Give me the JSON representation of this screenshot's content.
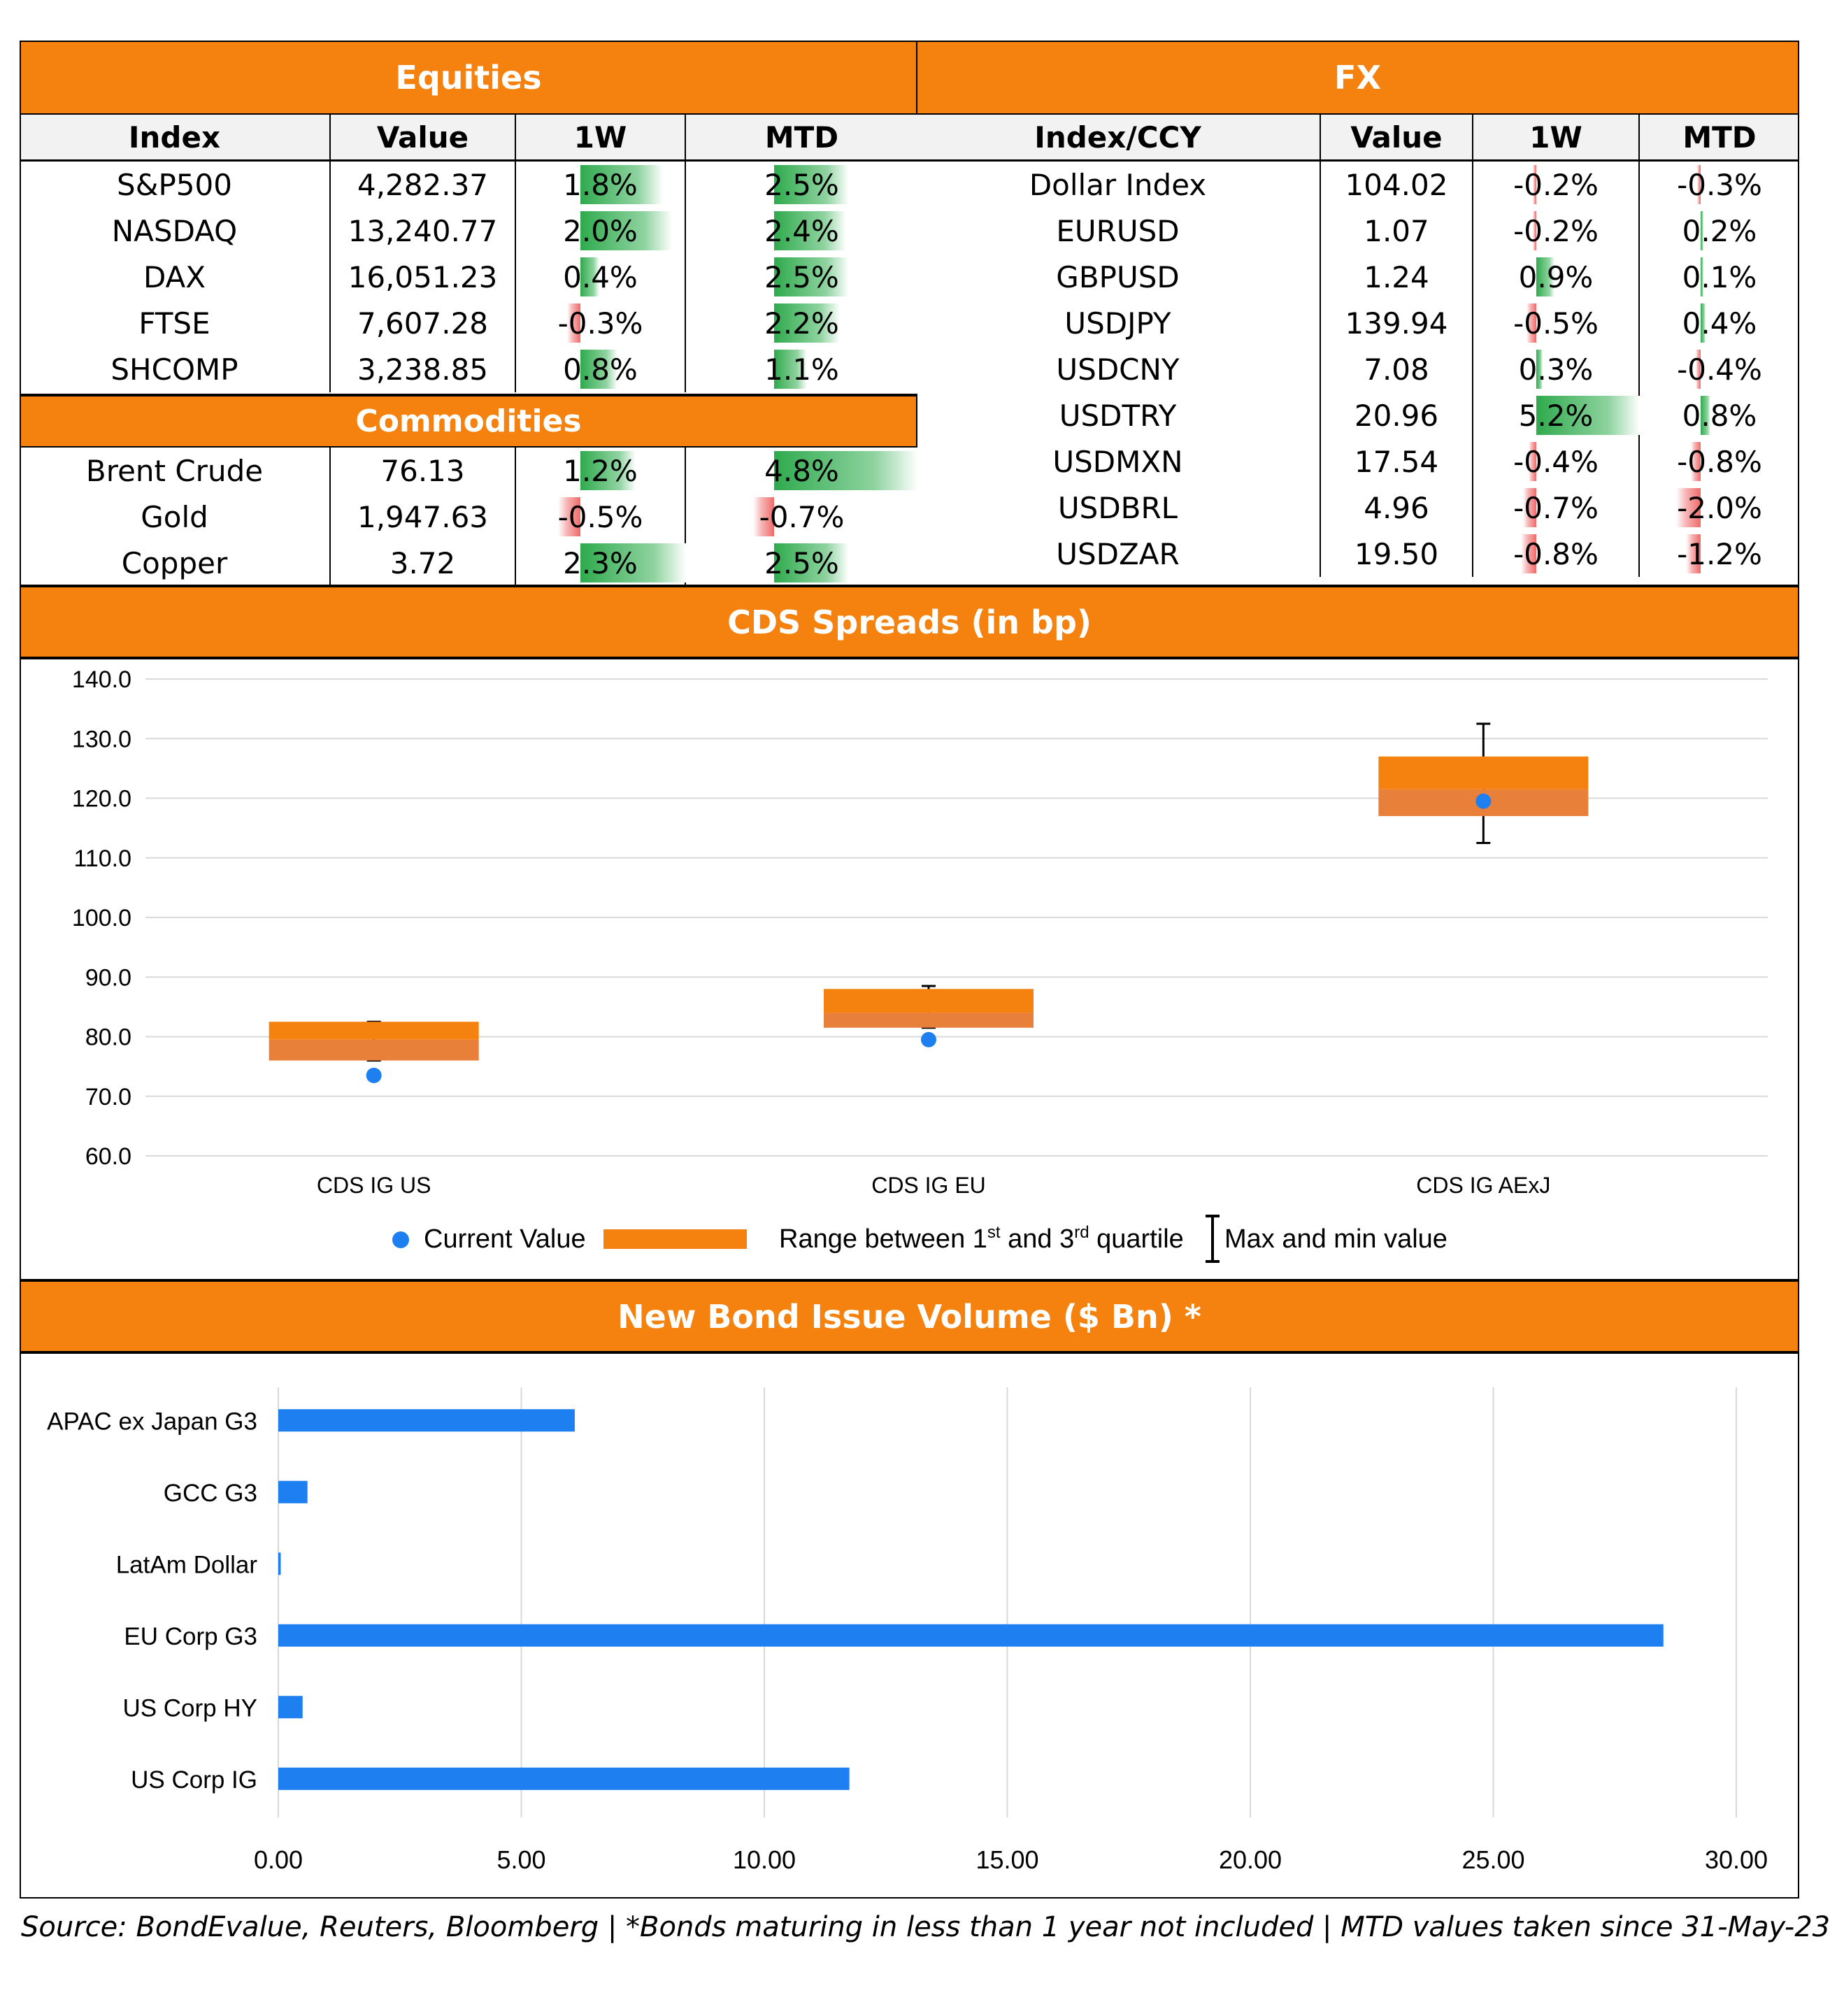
{
  "equities": {
    "title": "Equities",
    "columns": [
      "Index",
      "Value",
      "1W",
      "MTD"
    ],
    "rows": [
      {
        "name": "S&P500",
        "value": "4,282.37",
        "w1": "1.8%",
        "mtd": "2.5%",
        "w1_num": 1.8,
        "mtd_num": 2.5
      },
      {
        "name": "NASDAQ",
        "value": "13,240.77",
        "w1": "2.0%",
        "mtd": "2.4%",
        "w1_num": 2.0,
        "mtd_num": 2.4
      },
      {
        "name": "DAX",
        "value": "16,051.23",
        "w1": "0.4%",
        "mtd": "2.5%",
        "w1_num": 0.4,
        "mtd_num": 2.5
      },
      {
        "name": "FTSE",
        "value": "7,607.28",
        "w1": "-0.3%",
        "mtd": "2.2%",
        "w1_num": -0.3,
        "mtd_num": 2.2
      },
      {
        "name": "SHCOMP",
        "value": "3,238.85",
        "w1": "0.8%",
        "mtd": "1.1%",
        "w1_num": 0.8,
        "mtd_num": 1.1
      }
    ]
  },
  "commodities": {
    "title": "Commodities",
    "rows": [
      {
        "name": "Brent Crude",
        "value": "76.13",
        "w1": "1.2%",
        "mtd": "4.8%",
        "w1_num": 1.2,
        "mtd_num": 4.8
      },
      {
        "name": "Gold",
        "value": "1,947.63",
        "w1": "-0.5%",
        "mtd": "-0.7%",
        "w1_num": -0.5,
        "mtd_num": -0.7
      },
      {
        "name": "Copper",
        "value": "3.72",
        "w1": "2.3%",
        "mtd": "2.5%",
        "w1_num": 2.3,
        "mtd_num": 2.5
      }
    ]
  },
  "fx": {
    "title": "FX",
    "columns": [
      "Index/CCY",
      "Value",
      "1W",
      "MTD"
    ],
    "rows": [
      {
        "name": "Dollar Index",
        "value": "104.02",
        "w1": "-0.2%",
        "mtd": "-0.3%",
        "w1_num": -0.2,
        "mtd_num": -0.3
      },
      {
        "name": "EURUSD",
        "value": "1.07",
        "w1": "-0.2%",
        "mtd": "0.2%",
        "w1_num": -0.2,
        "mtd_num": 0.2
      },
      {
        "name": "GBPUSD",
        "value": "1.24",
        "w1": "0.9%",
        "mtd": "0.1%",
        "w1_num": 0.9,
        "mtd_num": 0.1
      },
      {
        "name": "USDJPY",
        "value": "139.94",
        "w1": "-0.5%",
        "mtd": "0.4%",
        "w1_num": -0.5,
        "mtd_num": 0.4
      },
      {
        "name": "USDCNY",
        "value": "7.08",
        "w1": "0.3%",
        "mtd": "-0.4%",
        "w1_num": 0.3,
        "mtd_num": -0.4
      },
      {
        "name": "USDTRY",
        "value": "20.96",
        "w1": "5.2%",
        "mtd": "0.8%",
        "w1_num": 5.2,
        "mtd_num": 0.8
      },
      {
        "name": "USDMXN",
        "value": "17.54",
        "w1": "-0.4%",
        "mtd": "-0.8%",
        "w1_num": -0.4,
        "mtd_num": -0.8
      },
      {
        "name": "USDBRL",
        "value": "4.96",
        "w1": "-0.7%",
        "mtd": "-2.0%",
        "w1_num": -0.7,
        "mtd_num": -2.0
      },
      {
        "name": "USDZAR",
        "value": "19.50",
        "w1": "-0.8%",
        "mtd": "-1.2%",
        "w1_num": -0.8,
        "mtd_num": -1.2
      }
    ]
  },
  "cds": {
    "title": "CDS Spreads (in bp)",
    "legend": {
      "current": "Current Value",
      "range_pre": "Range between 1",
      "range_sup1": "st",
      "range_mid": " and 3",
      "range_sup2": "rd",
      "range_post": " quartile",
      "maxmin": "Max and min value"
    }
  },
  "bonds": {
    "title": "New Bond Issue Volume ($ Bn) *"
  },
  "footer": "Source: BondEvalue, Reuters, Bloomberg | *Bonds maturing in less than 1 year not included | MTD values taken since 31-May-23",
  "colors": {
    "orange": "#f5820e",
    "blue": "#1e7ff0",
    "box": "#f5820e",
    "box_lower": "#e8803a",
    "grid": "#d9d9d9"
  },
  "chart_data": [
    {
      "type": "box",
      "title": "CDS Spreads (in bp)",
      "categories": [
        "CDS IG US",
        "CDS IG EU",
        "CDS IG AExJ"
      ],
      "ylim": [
        60,
        140
      ],
      "yticks": [
        "60.0",
        "70.0",
        "80.0",
        "90.0",
        "100.0",
        "110.0",
        "120.0",
        "130.0",
        "140.0"
      ],
      "q1": [
        76,
        81.5,
        117
      ],
      "median": [
        79.5,
        84,
        121.5
      ],
      "q3": [
        82.5,
        88,
        127
      ],
      "min": [
        76,
        81.5,
        112.5
      ],
      "max": [
        82.5,
        88.5,
        132.5
      ],
      "current": [
        73.5,
        79.5,
        119.5
      ],
      "series": [
        {
          "name": "Current Value"
        },
        {
          "name": "Range between 1st and 3rd quartile"
        },
        {
          "name": "Max and min value"
        }
      ]
    },
    {
      "type": "bar",
      "orientation": "horizontal",
      "title": "New Bond Issue Volume ($ Bn) *",
      "categories": [
        "APAC ex Japan G3",
        "GCC G3",
        "LatAm Dollar",
        "EU Corp G3",
        "US Corp HY",
        "US Corp IG"
      ],
      "values": [
        6.1,
        0.6,
        0.05,
        28.5,
        0.5,
        11.75
      ],
      "xlim": [
        0,
        30
      ],
      "xticks": [
        "0.00",
        "5.00",
        "10.00",
        "15.00",
        "20.00",
        "25.00",
        "30.00"
      ]
    }
  ]
}
